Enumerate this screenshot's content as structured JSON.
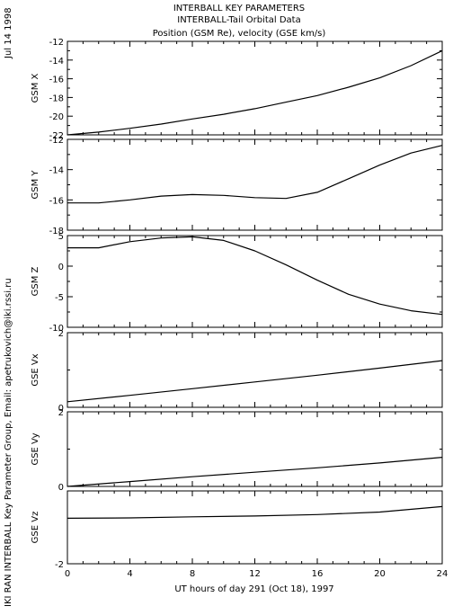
{
  "header": {
    "line1": "INTERBALL KEY PARAMETERS",
    "line2": "INTERBALL-Tail Orbital Data",
    "line3": "Position (GSM Re), velocity (GSE km/s)"
  },
  "side": {
    "date": "Jul 14 1998",
    "credit": "IKI RAN INTERBALL Key Parameter Group, Email: apetrukovich@iki.rssi.ru"
  },
  "chart_data": [
    {
      "type": "line",
      "ylabel": "GSM X",
      "ylim": [
        -22,
        -12
      ],
      "yticks": [
        -22,
        -20,
        -18,
        -16,
        -14,
        -12
      ],
      "yticklabels": [
        "-22",
        "-20",
        "-18",
        "-16",
        "-14",
        "-12"
      ],
      "x": [
        0,
        2,
        4,
        6,
        8,
        10,
        12,
        14,
        16,
        18,
        20,
        22,
        24
      ],
      "values": [
        -22.0,
        -21.7,
        -21.3,
        -20.85,
        -20.3,
        -19.8,
        -19.2,
        -18.5,
        -17.8,
        -16.9,
        -15.9,
        -14.6,
        -13.0
      ]
    },
    {
      "type": "line",
      "ylabel": "GSM Y",
      "ylim": [
        -18,
        -12
      ],
      "yticks": [
        -18,
        -16,
        -14,
        -12
      ],
      "yticklabels": [
        "-18",
        "-16",
        "-14",
        "-12"
      ],
      "x": [
        0,
        2,
        4,
        6,
        8,
        10,
        12,
        14,
        16,
        18,
        20,
        22,
        24
      ],
      "values": [
        -16.2,
        -16.2,
        -16.0,
        -15.75,
        -15.65,
        -15.7,
        -15.85,
        -15.9,
        -15.5,
        -14.6,
        -13.7,
        -12.9,
        -12.4
      ]
    },
    {
      "type": "line",
      "ylabel": "GSM Z",
      "ylim": [
        -10,
        5
      ],
      "yticks": [
        -10,
        -5,
        0,
        5
      ],
      "yticklabels": [
        "-10",
        "-5",
        "0",
        "5"
      ],
      "x": [
        0,
        2,
        4,
        6,
        8,
        10,
        12,
        14,
        16,
        18,
        20,
        22,
        24
      ],
      "values": [
        3.0,
        3.0,
        4.0,
        4.6,
        4.8,
        4.2,
        2.5,
        0.2,
        -2.3,
        -4.6,
        -6.2,
        -7.3,
        -7.9
      ]
    },
    {
      "type": "line",
      "ylabel": "GSE Vx",
      "ylim": [
        0,
        2
      ],
      "yticks": [
        0,
        2
      ],
      "yticklabels": [
        "0",
        "2"
      ],
      "x": [
        0,
        4,
        8,
        12,
        16,
        20,
        24
      ],
      "values": [
        0.15,
        0.32,
        0.5,
        0.68,
        0.86,
        1.05,
        1.25
      ]
    },
    {
      "type": "line",
      "ylabel": "GSE Vy",
      "ylim": [
        0,
        2
      ],
      "yticks": [
        0,
        2
      ],
      "yticklabels": [
        "0",
        "2"
      ],
      "x": [
        0,
        4,
        8,
        12,
        16,
        20,
        24
      ],
      "values": [
        0.0,
        0.13,
        0.26,
        0.38,
        0.5,
        0.63,
        0.78
      ]
    },
    {
      "type": "line",
      "ylabel": "GSE Vz",
      "ylim": [
        -2,
        0
      ],
      "yticks": [
        -2
      ],
      "yticklabels": [
        "-2"
      ],
      "x": [
        0,
        4,
        8,
        12,
        16,
        20,
        24
      ],
      "values": [
        -0.75,
        -0.74,
        -0.71,
        -0.69,
        -0.65,
        -0.58,
        -0.43
      ]
    }
  ],
  "xaxis": {
    "xlim": [
      0,
      24
    ],
    "ticks": [
      0,
      4,
      8,
      12,
      16,
      20,
      24
    ],
    "ticklabels": [
      "0",
      "4",
      "8",
      "12",
      "16",
      "20",
      "24"
    ],
    "label": "UT hours of day 291 (Oct 18), 1997"
  }
}
